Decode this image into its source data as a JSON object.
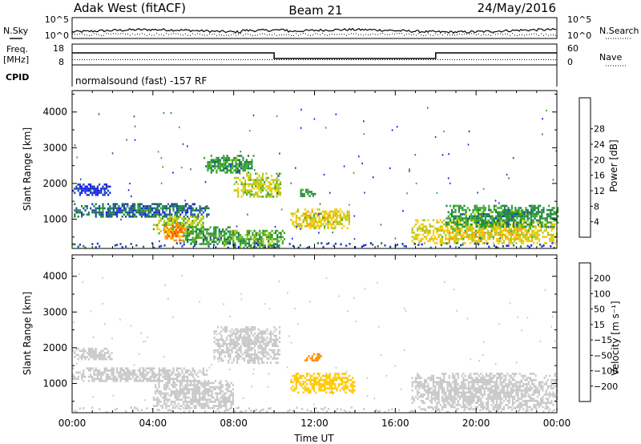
{
  "header": {
    "site": "Adak West (fitACF)",
    "beam": "Beam 21",
    "date": "24/May/2016"
  },
  "top_panels": {
    "nsky_label": "N.Sky",
    "nsky_ticks": [
      "10^5",
      "10^0"
    ],
    "nsearch_label": "N.Search",
    "nsearch_ticks": [
      "10^5",
      "10^0"
    ],
    "freq_label_line1": "Freq.",
    "freq_label_line2": "[MHz]",
    "freq_ticks": [
      "18",
      "8"
    ],
    "nave_label": "Nave",
    "nave_ticks": [
      "60",
      "0"
    ],
    "cpid_label": "CPID",
    "cpid_text": "normalsound (fast) -157 RF"
  },
  "chart_data": [
    {
      "type": "heatmap",
      "name": "power",
      "ylabel": "Slant Range [km]",
      "xlabel": "",
      "x_range_hours": [
        0,
        24
      ],
      "x_ticks": [
        "00:00",
        "04:00",
        "08:00",
        "12:00",
        "16:00",
        "20:00",
        "00:00"
      ],
      "y_range_km": [
        180,
        4600
      ],
      "y_ticks": [
        1000,
        2000,
        3000,
        4000
      ],
      "colorbar": {
        "label": "Power [dB]",
        "ticks": [
          4,
          8,
          12,
          16,
          20,
          24,
          28
        ],
        "colors": [
          "#1a1aff",
          "#1e46aa",
          "#1e8246",
          "#3caa28",
          "#b4c81e",
          "#ffc800",
          "#ff8c00",
          "#ff5000",
          "#dc1e1e"
        ]
      },
      "regions": [
        {
          "t0": 0.0,
          "t1": 6.8,
          "r0": 1050,
          "r1": 1450,
          "level": 8
        },
        {
          "t0": 4.0,
          "t1": 6.5,
          "r0": 600,
          "r1": 1100,
          "level": 18
        },
        {
          "t0": 4.5,
          "t1": 5.6,
          "r0": 400,
          "r1": 900,
          "level": 26
        },
        {
          "t0": 5.5,
          "t1": 8.0,
          "r0": 300,
          "r1": 800,
          "level": 12
        },
        {
          "t0": 8.0,
          "t1": 10.3,
          "r0": 1600,
          "r1": 2300,
          "level": 18
        },
        {
          "t0": 6.5,
          "t1": 9.0,
          "r0": 2300,
          "r1": 2800,
          "level": 12
        },
        {
          "t0": 10.8,
          "t1": 13.7,
          "r0": 750,
          "r1": 1300,
          "level": 20
        },
        {
          "t0": 7.5,
          "t1": 10.5,
          "r0": 200,
          "r1": 700,
          "level": 14
        },
        {
          "t0": 16.8,
          "t1": 24.0,
          "r0": 300,
          "r1": 1000,
          "level": 20
        },
        {
          "t0": 18.5,
          "t1": 24.0,
          "r0": 800,
          "r1": 1400,
          "level": 12
        },
        {
          "t0": 0.0,
          "t1": 2.0,
          "r0": 1700,
          "r1": 2000,
          "level": 4
        },
        {
          "t0": 11.2,
          "t1": 12.0,
          "r0": 1650,
          "r1": 1850,
          "level": 12
        }
      ]
    },
    {
      "type": "heatmap",
      "name": "velocity",
      "ylabel": "Slant Range [km]",
      "xlabel": "Time UT",
      "x_range_hours": [
        0,
        24
      ],
      "x_ticks": [
        "00:00",
        "04:00",
        "08:00",
        "12:00",
        "16:00",
        "20:00",
        "00:00"
      ],
      "y_range_km": [
        180,
        4600
      ],
      "y_ticks": [
        1000,
        2000,
        3000,
        4000
      ],
      "colorbar": {
        "label": "Velocity [m s⁻¹]",
        "ticks": [
          "200",
          "100",
          "50",
          "15",
          "−15",
          "−50",
          "−100",
          "−200"
        ],
        "colors": [
          "#1a1aff",
          "#1e46aa",
          "#1e8246",
          "#3caa28",
          "#c8c8c8",
          "#ffc800",
          "#ff8c00",
          "#ff5000",
          "#dc1e1e"
        ]
      },
      "regions": [
        {
          "t0": 0.0,
          "t1": 6.8,
          "r0": 1050,
          "r1": 1450,
          "level": 0
        },
        {
          "t0": 4.0,
          "t1": 8.0,
          "r0": 300,
          "r1": 1100,
          "level": 0
        },
        {
          "t0": 7.0,
          "t1": 10.3,
          "r0": 1600,
          "r1": 2600,
          "level": 0
        },
        {
          "t0": 10.8,
          "t1": 14.0,
          "r0": 750,
          "r1": 1300,
          "level": -40
        },
        {
          "t0": 11.5,
          "t1": 12.3,
          "r0": 1650,
          "r1": 1850,
          "level": -80
        },
        {
          "t0": 16.8,
          "t1": 24.0,
          "r0": 300,
          "r1": 1300,
          "level": 0
        },
        {
          "t0": 0.0,
          "t1": 2.0,
          "r0": 1700,
          "r1": 2000,
          "level": 0
        }
      ]
    }
  ]
}
